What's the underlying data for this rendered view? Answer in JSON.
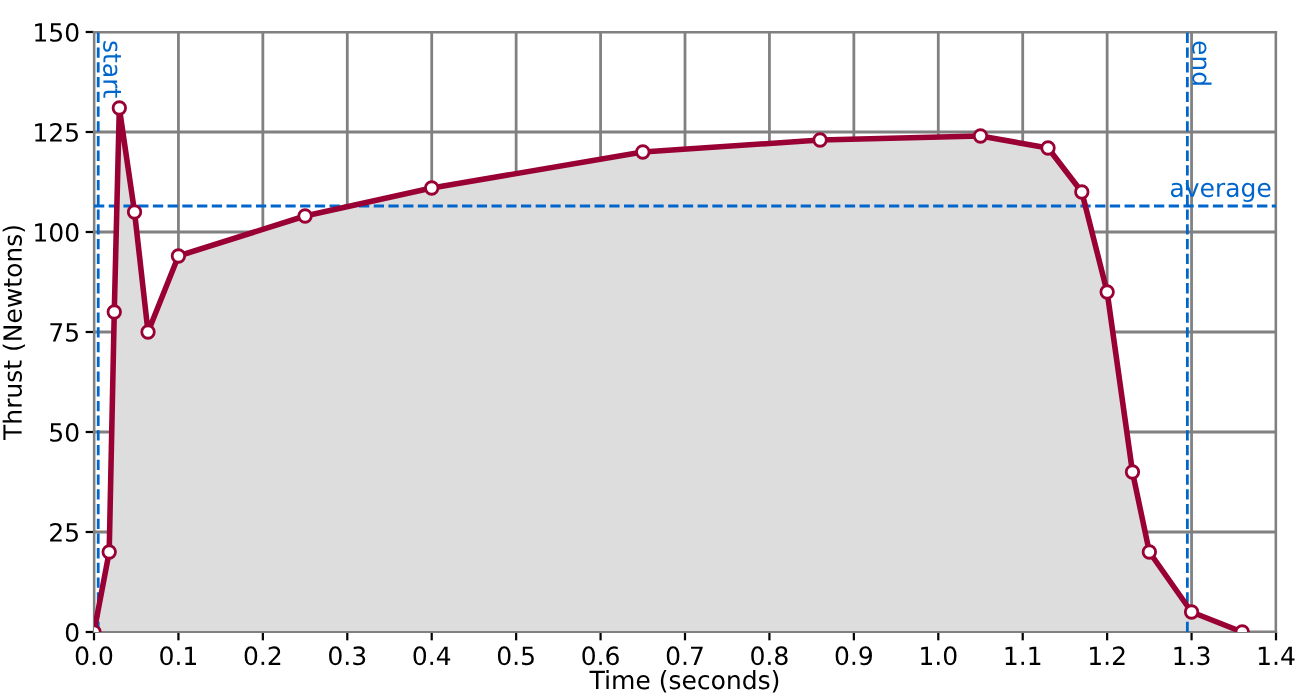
{
  "chart_data": {
    "type": "area",
    "xlabel": "Time (seconds)",
    "ylabel": "Thrust (Newtons)",
    "x": [
      0,
      0.018,
      0.024,
      0.03,
      0.048,
      0.064,
      0.1,
      0.25,
      0.4,
      0.65,
      0.86,
      1.05,
      1.13,
      1.17,
      1.2,
      1.23,
      1.25,
      1.3,
      1.36
    ],
    "series": [
      {
        "color": "#990033",
        "values": [
          0,
          20,
          80,
          131,
          105,
          75,
          94,
          104,
          111,
          120,
          123,
          124,
          121,
          110,
          85,
          40,
          20,
          5,
          0
        ]
      }
    ],
    "xlim": [
      0,
      1.4
    ],
    "xticks": [
      {
        "value": 0,
        "label": "0.0"
      },
      0.1,
      0.2,
      0.3,
      0.4,
      0.5,
      0.6,
      0.7,
      0.8,
      0.9,
      {
        "value": 1,
        "label": "1.0"
      },
      1.1,
      1.2,
      1.3,
      1.4
    ],
    "ylim": [
      0,
      150
    ],
    "yticks": [
      0,
      25,
      50,
      75,
      100,
      125,
      150
    ],
    "ref_lines": [
      {
        "axis": "x",
        "value": 0.005,
        "label": "start",
        "color": "#0066cc",
        "line_style": "dashed"
      },
      {
        "axis": "x",
        "value": 1.295,
        "label": "end",
        "color": "#0066cc",
        "line_style": "dashed"
      },
      {
        "axis": "y",
        "value": 106.5,
        "label": "average",
        "color": "#0066cc",
        "line_style": "dashed"
      }
    ],
    "grid": true,
    "marker": "circle",
    "line_style": "solid",
    "legend": false
  }
}
